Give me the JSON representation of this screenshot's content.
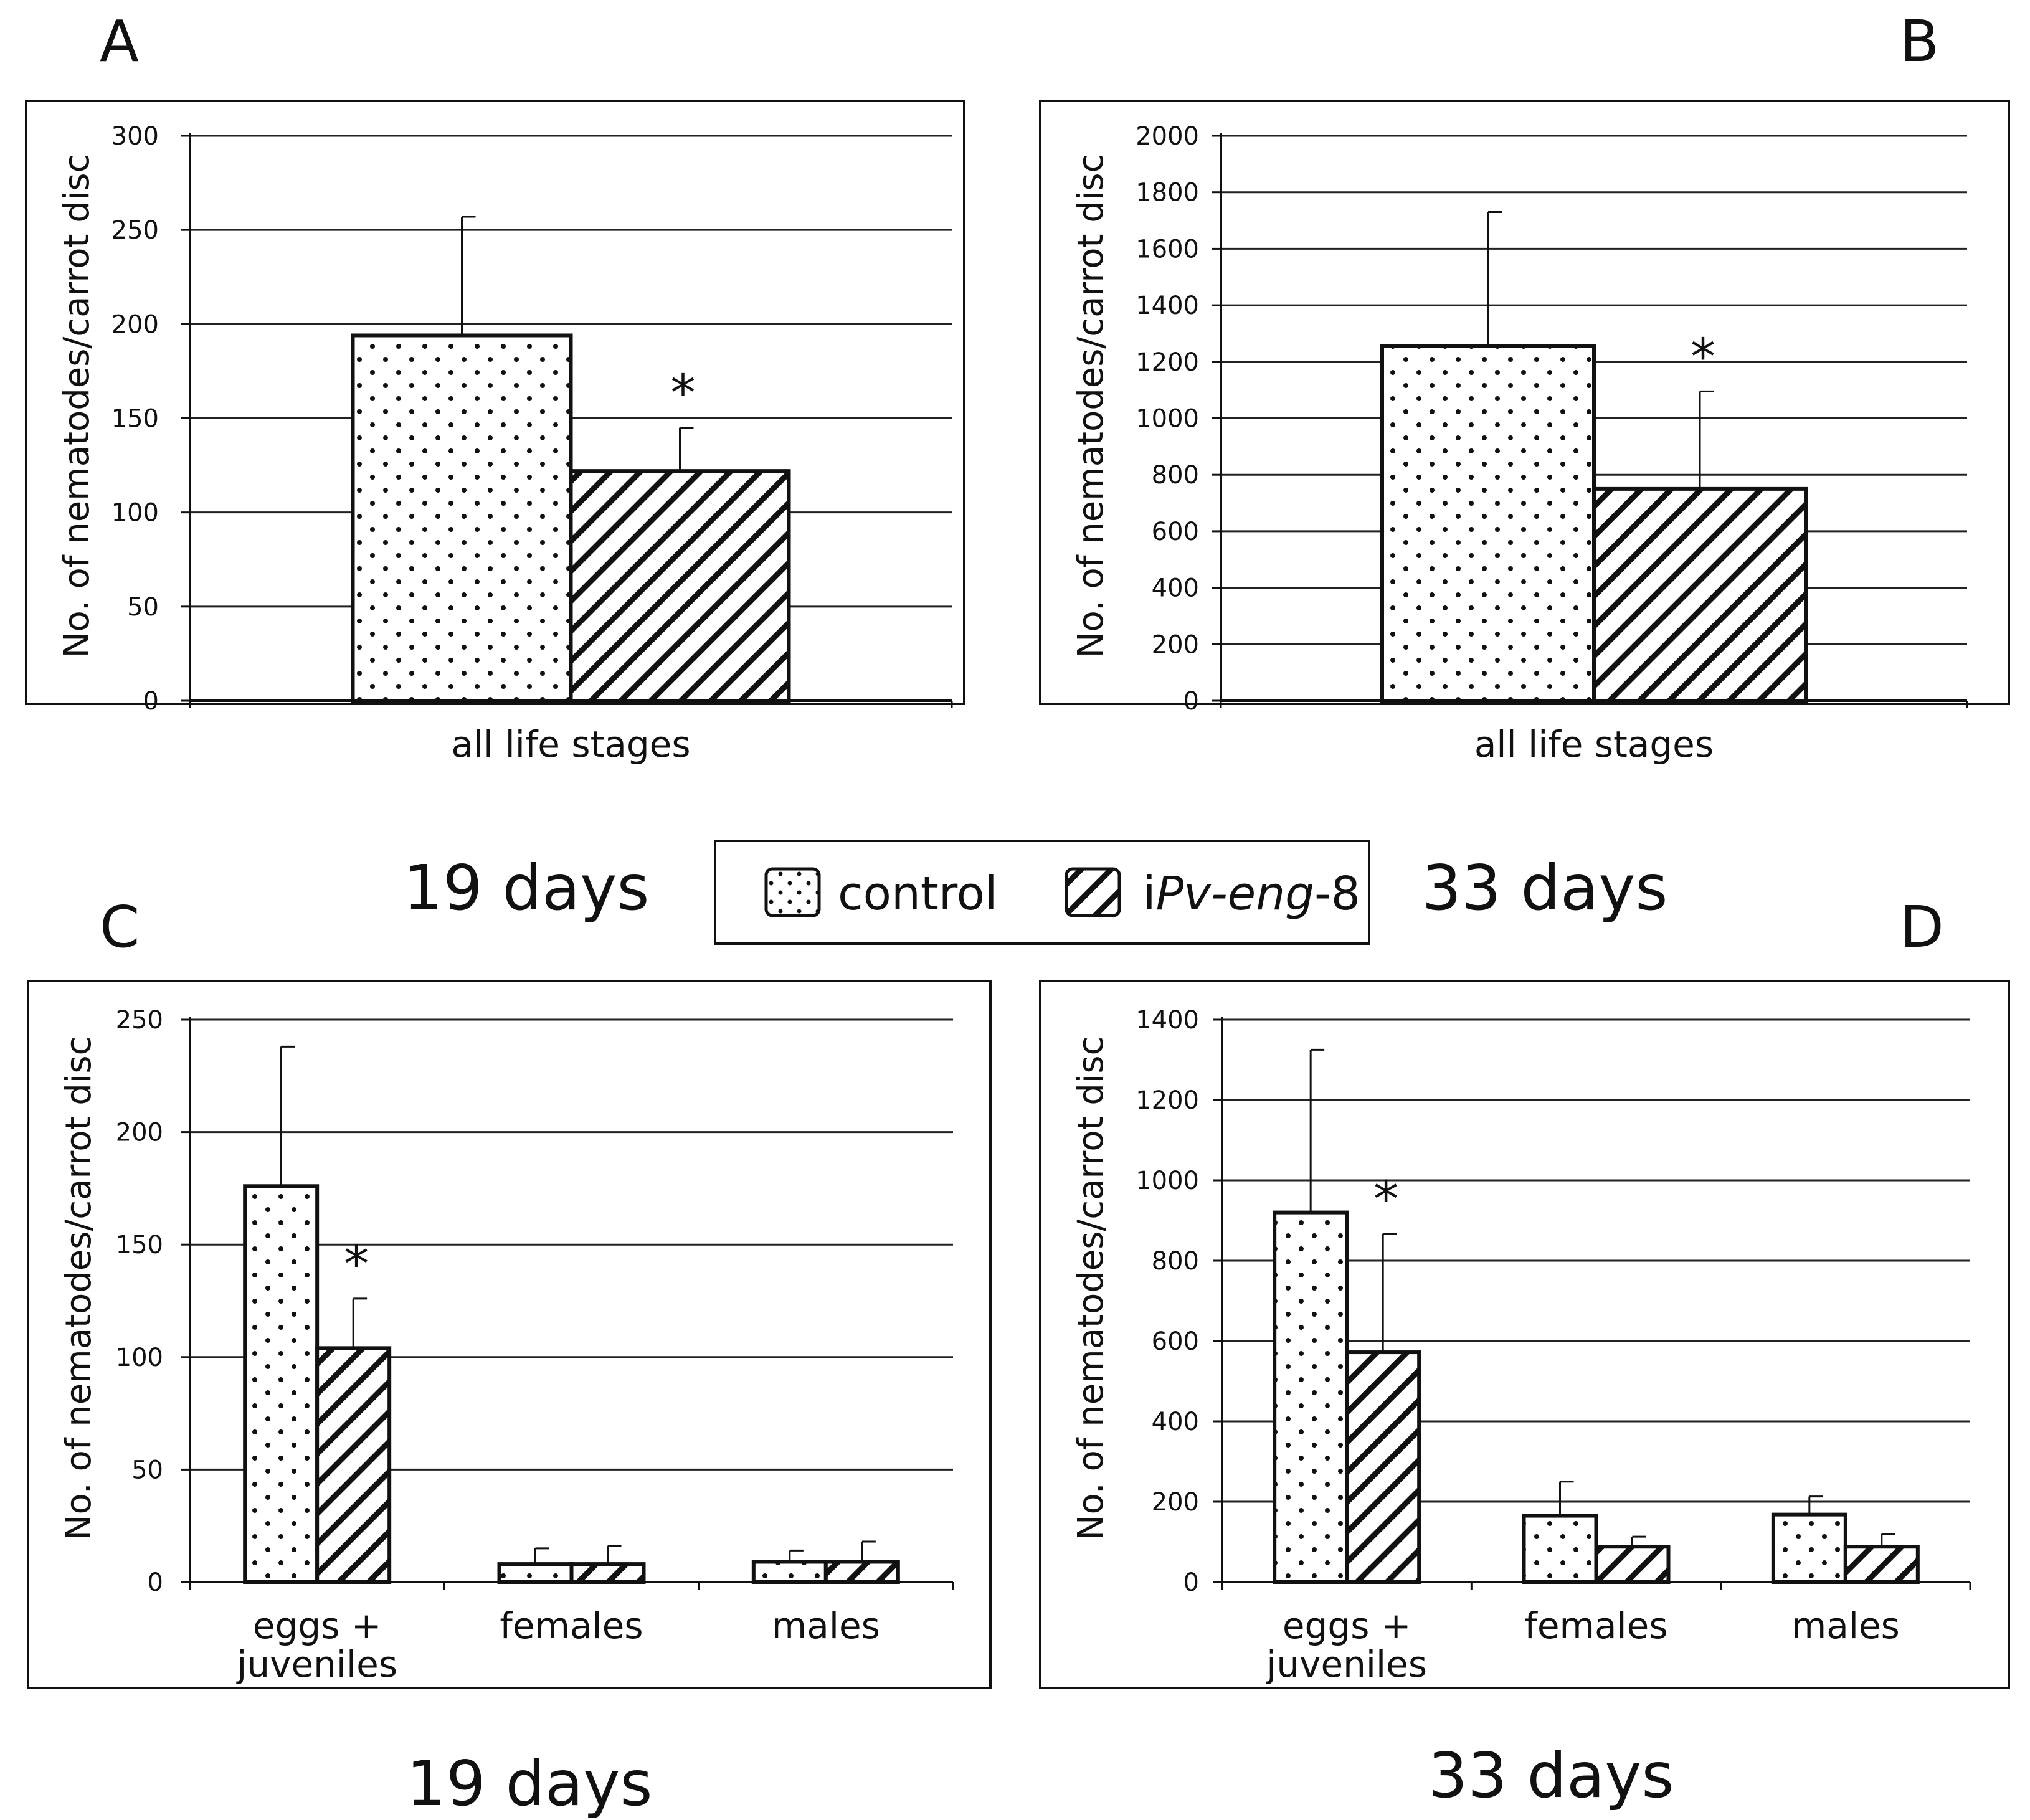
{
  "figure": {
    "legend": {
      "control_label": "control",
      "treatment_label_prefix": "i",
      "treatment_label_italic": "Pv-eng",
      "treatment_label_suffix": "-8"
    },
    "captions": {
      "top_left": "19 days",
      "top_right": "33 days",
      "bottom_left": "19 days",
      "bottom_right": "33 days"
    },
    "colors": {
      "ink": "#111111",
      "background": "#ffffff",
      "grid": "#222222"
    }
  },
  "chart_data": [
    {
      "panel": "A",
      "type": "bar",
      "title": "",
      "ylabel": "No. of nematodes/carrot disc",
      "xlabel": "",
      "ylim": [
        0,
        300
      ],
      "yticks": [
        0,
        50,
        100,
        150,
        200,
        250,
        300
      ],
      "grid": true,
      "categories": [
        [
          "all life stages"
        ]
      ],
      "series": [
        {
          "name": "control",
          "pattern": "dots",
          "values": [
            194
          ],
          "errors": [
            63
          ]
        },
        {
          "name": "iPv-eng-8",
          "pattern": "hatch",
          "values": [
            122
          ],
          "errors": [
            23
          ]
        }
      ],
      "significance": [
        {
          "category": 0,
          "series": 1,
          "mark": "*"
        }
      ]
    },
    {
      "panel": "B",
      "type": "bar",
      "title": "",
      "ylabel": "No. of nematodes/carrot disc",
      "xlabel": "",
      "ylim": [
        0,
        2000
      ],
      "yticks": [
        0,
        200,
        400,
        600,
        800,
        1000,
        1200,
        1400,
        1600,
        1800,
        2000
      ],
      "grid": true,
      "categories": [
        [
          "all life stages"
        ]
      ],
      "series": [
        {
          "name": "control",
          "pattern": "dots",
          "values": [
            1255
          ],
          "errors": [
            475
          ]
        },
        {
          "name": "iPv-eng-8",
          "pattern": "hatch",
          "values": [
            750
          ],
          "errors": [
            345
          ]
        }
      ],
      "significance": [
        {
          "category": 0,
          "series": 1,
          "mark": "*"
        }
      ]
    },
    {
      "panel": "C",
      "type": "bar",
      "title": "",
      "ylabel": "No. of nematodes/carrot disc",
      "xlabel": "",
      "ylim": [
        0,
        250
      ],
      "yticks": [
        0,
        50,
        100,
        150,
        200,
        250
      ],
      "grid": true,
      "categories": [
        [
          "eggs +",
          "juveniles"
        ],
        [
          "females"
        ],
        [
          "males"
        ]
      ],
      "series": [
        {
          "name": "control",
          "pattern": "dots",
          "values": [
            176,
            8,
            9
          ],
          "errors": [
            62,
            7,
            5
          ]
        },
        {
          "name": "iPv-eng-8",
          "pattern": "hatch",
          "values": [
            104,
            8,
            9
          ],
          "errors": [
            22,
            8,
            9
          ]
        }
      ],
      "significance": [
        {
          "category": 0,
          "series": 1,
          "mark": "*"
        }
      ]
    },
    {
      "panel": "D",
      "type": "bar",
      "title": "",
      "ylabel": "No. of nematodes/carrot disc",
      "xlabel": "",
      "ylim": [
        0,
        1400
      ],
      "yticks": [
        0,
        200,
        400,
        600,
        800,
        1000,
        1200,
        1400
      ],
      "grid": true,
      "categories": [
        [
          "eggs +",
          "juveniles"
        ],
        [
          "females"
        ],
        [
          "males"
        ]
      ],
      "series": [
        {
          "name": "control",
          "pattern": "dots",
          "values": [
            920,
            165,
            168
          ],
          "errors": [
            405,
            85,
            45
          ]
        },
        {
          "name": "iPv-eng-8",
          "pattern": "hatch",
          "values": [
            572,
            88,
            88
          ],
          "errors": [
            295,
            25,
            32
          ]
        }
      ],
      "significance": [
        {
          "category": 0,
          "series": 1,
          "mark": "*"
        }
      ]
    }
  ]
}
